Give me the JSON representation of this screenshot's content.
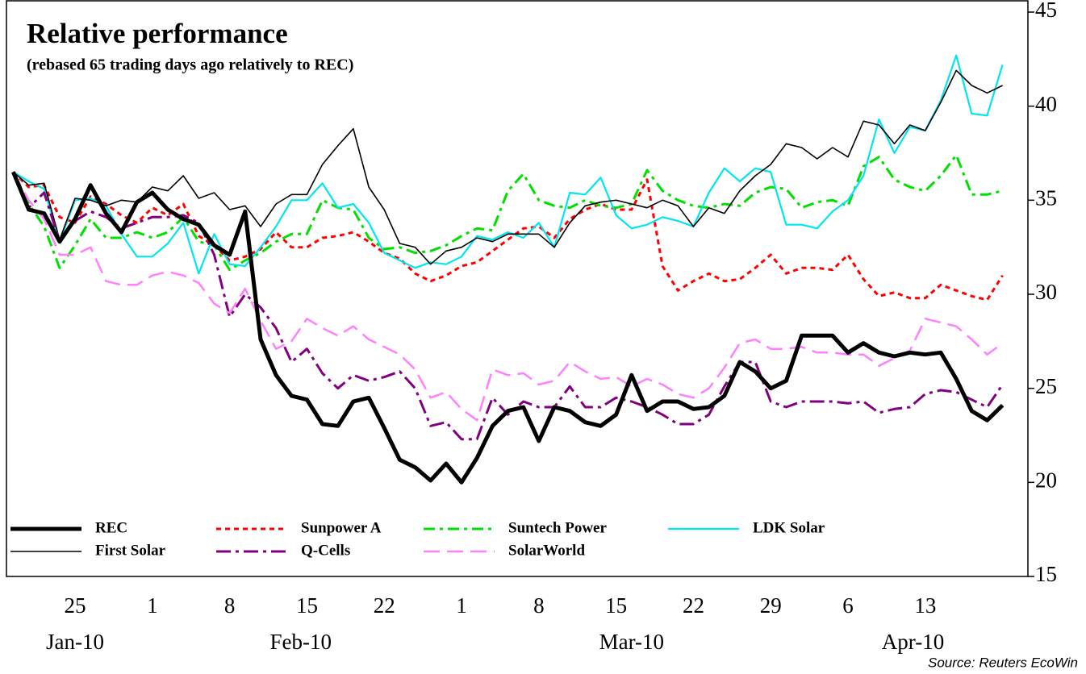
{
  "chart_data": {
    "type": "line",
    "title": "Relative performance",
    "subtitle": "(rebased 65 trading days ago relatively to REC)",
    "source": "Source: Reuters EcoWin",
    "categories": [
      null,
      null,
      null,
      null,
      "25",
      null,
      null,
      null,
      null,
      "1",
      null,
      null,
      null,
      null,
      "8",
      null,
      null,
      null,
      null,
      "15",
      null,
      null,
      null,
      null,
      "22",
      null,
      null,
      null,
      null,
      "1",
      null,
      null,
      null,
      null,
      "8",
      null,
      null,
      null,
      null,
      "15",
      null,
      null,
      null,
      null,
      "22",
      null,
      null,
      null,
      null,
      "29",
      null,
      null,
      null,
      null,
      "6",
      null,
      null,
      null,
      null,
      "13",
      null,
      null,
      null,
      null,
      null
    ],
    "month_labels": [
      "Jan-10",
      "Feb-10",
      "Mar-10",
      "Apr-10"
    ],
    "ylim": [
      15,
      45
    ],
    "yticks": [
      15,
      20,
      25,
      30,
      35,
      40,
      45
    ],
    "y_axis_side": "right",
    "grid": false,
    "series": [
      {
        "name": "REC",
        "color": "#000000",
        "style": "thick",
        "values": [
          36.5,
          34.5,
          34.3,
          32.8,
          34.0,
          35.8,
          34.3,
          33.3,
          34.9,
          35.4,
          34.5,
          34.0,
          33.7,
          32.6,
          32.1,
          34.4,
          27.6,
          25.7,
          24.6,
          24.4,
          23.1,
          23.0,
          24.3,
          24.5,
          22.9,
          21.2,
          20.8,
          20.1,
          21.0,
          20.0,
          21.3,
          23.0,
          23.8,
          24.0,
          22.2,
          24.0,
          23.8,
          23.2,
          23.0,
          23.6,
          25.7,
          23.8,
          24.3,
          24.3,
          23.9,
          24.0,
          24.6,
          26.4,
          25.9,
          25.0,
          25.4,
          27.8,
          27.8,
          27.8,
          26.9,
          27.4,
          26.9,
          26.7,
          26.9,
          26.8,
          26.9,
          25.5,
          23.8,
          23.3,
          24.1
        ]
      },
      {
        "name": "Sunpower A",
        "color": "#ff0000",
        "style": "dotted",
        "values": [
          36.5,
          35.7,
          35.8,
          34.1,
          33.8,
          35.2,
          34.8,
          34.2,
          33.8,
          34.6,
          34.2,
          34.8,
          33.1,
          32.6,
          31.8,
          32.0,
          32.4,
          33.3,
          32.5,
          32.5,
          33.0,
          33.1,
          33.3,
          32.8,
          32.2,
          31.9,
          31.1,
          30.7,
          31.0,
          31.5,
          31.7,
          32.3,
          32.9,
          33.5,
          33.6,
          33.0,
          34.0,
          34.5,
          34.8,
          34.5,
          34.5,
          36.1,
          31.5,
          30.2,
          30.7,
          31.1,
          30.7,
          30.8,
          31.4,
          32.1,
          31.1,
          31.4,
          31.4,
          31.3,
          32.1,
          30.8,
          29.9,
          30.1,
          29.8,
          29.8,
          30.5,
          30.2,
          29.9,
          29.7,
          31.0
        ]
      },
      {
        "name": "Suntech Power",
        "color": "#00e000",
        "style": "dashdot",
        "values": [
          36.5,
          34.8,
          33.6,
          31.4,
          32.6,
          34.0,
          33.0,
          33.0,
          33.3,
          33.0,
          33.3,
          34.1,
          32.8,
          32.6,
          31.3,
          31.8,
          32.2,
          32.8,
          33.2,
          33.2,
          35.0,
          34.6,
          34.5,
          33.0,
          32.4,
          32.5,
          32.2,
          32.3,
          32.6,
          33.1,
          33.5,
          33.4,
          35.5,
          36.4,
          35.0,
          34.7,
          34.6,
          35.0,
          34.7,
          34.6,
          34.8,
          36.6,
          35.5,
          35.0,
          34.7,
          34.6,
          34.8,
          34.7,
          35.4,
          35.7,
          35.6,
          34.6,
          34.9,
          35.0,
          34.7,
          36.8,
          37.3,
          36.1,
          35.7,
          35.5,
          36.3,
          37.4,
          35.3,
          35.3,
          35.5
        ]
      },
      {
        "name": "LDK Solar",
        "color": "#00e5ee",
        "style": "solid",
        "values": [
          36.5,
          36.0,
          35.6,
          32.8,
          35.0,
          35.1,
          34.7,
          33.2,
          32.0,
          32.0,
          32.7,
          33.8,
          31.1,
          33.2,
          31.6,
          31.5,
          32.5,
          33.6,
          35.0,
          35.0,
          35.9,
          34.6,
          34.8,
          33.8,
          32.2,
          31.8,
          31.4,
          31.7,
          31.6,
          32.0,
          33.1,
          32.9,
          33.3,
          33.0,
          33.8,
          32.5,
          35.4,
          35.3,
          36.2,
          34.2,
          33.5,
          33.7,
          34.1,
          33.9,
          33.6,
          35.4,
          36.7,
          36.0,
          36.7,
          36.5,
          33.7,
          33.7,
          33.5,
          34.4,
          35.0,
          36.3,
          39.3,
          37.5,
          38.9,
          38.7,
          40.3,
          42.7,
          39.6,
          39.5,
          42.2
        ]
      },
      {
        "name": "First Solar",
        "color": "#000000",
        "style": "thin",
        "values": [
          36.5,
          35.8,
          35.9,
          32.9,
          35.1,
          35.0,
          34.7,
          35.0,
          34.9,
          35.7,
          35.5,
          36.3,
          35.1,
          35.4,
          34.5,
          34.7,
          33.6,
          34.8,
          35.3,
          35.3,
          36.9,
          37.9,
          38.8,
          35.7,
          34.5,
          32.7,
          32.5,
          31.6,
          32.3,
          32.5,
          33.0,
          32.8,
          33.2,
          33.2,
          33.2,
          32.5,
          33.8,
          34.7,
          34.9,
          35.0,
          34.8,
          34.6,
          35.0,
          34.7,
          33.6,
          34.6,
          34.3,
          35.5,
          36.3,
          36.9,
          38.0,
          37.8,
          37.2,
          37.8,
          37.3,
          39.2,
          39.0,
          38.0,
          39.0,
          38.7,
          40.2,
          41.9,
          41.1,
          40.7,
          41.1
        ]
      },
      {
        "name": "Q-Cells",
        "color": "#800080",
        "style": "longdashdot",
        "values": [
          36.5,
          34.6,
          35.4,
          32.8,
          33.9,
          34.4,
          34.1,
          33.5,
          33.8,
          34.1,
          34.1,
          34.2,
          33.8,
          32.1,
          28.8,
          30.0,
          29.3,
          28.2,
          26.4,
          27.1,
          25.8,
          25.0,
          25.7,
          25.4,
          25.6,
          25.9,
          25.0,
          23.0,
          23.2,
          22.3,
          22.3,
          24.5,
          23.6,
          24.3,
          24.0,
          24.0,
          25.1,
          24.0,
          24.0,
          24.5,
          24.3,
          24.0,
          23.6,
          23.1,
          23.1,
          23.6,
          25.1,
          26.4,
          26.4,
          24.3,
          24.0,
          24.3,
          24.3,
          24.3,
          24.2,
          24.3,
          23.7,
          23.9,
          24.0,
          24.7,
          24.9,
          24.8,
          24.4,
          24.0,
          25.2
        ]
      },
      {
        "name": "SolarWorld",
        "color": "#ff80ff",
        "style": "dashed",
        "values": [
          36.5,
          35.0,
          34.0,
          32.1,
          32.1,
          32.5,
          30.7,
          30.5,
          30.5,
          31.0,
          31.2,
          31.0,
          30.6,
          29.5,
          29.0,
          30.3,
          28.6,
          27.1,
          27.5,
          28.7,
          28.2,
          27.8,
          28.3,
          27.6,
          27.2,
          26.8,
          26.0,
          24.5,
          24.8,
          23.9,
          23.3,
          26.0,
          25.7,
          25.8,
          25.2,
          25.4,
          26.4,
          25.9,
          25.5,
          25.6,
          25.1,
          25.5,
          25.2,
          24.7,
          24.5,
          25.0,
          26.1,
          27.4,
          27.6,
          27.1,
          27.1,
          27.2,
          26.9,
          26.9,
          26.8,
          26.8,
          26.2,
          26.6,
          27.0,
          28.7,
          28.5,
          28.3,
          27.6,
          26.8,
          27.4
        ]
      }
    ]
  }
}
